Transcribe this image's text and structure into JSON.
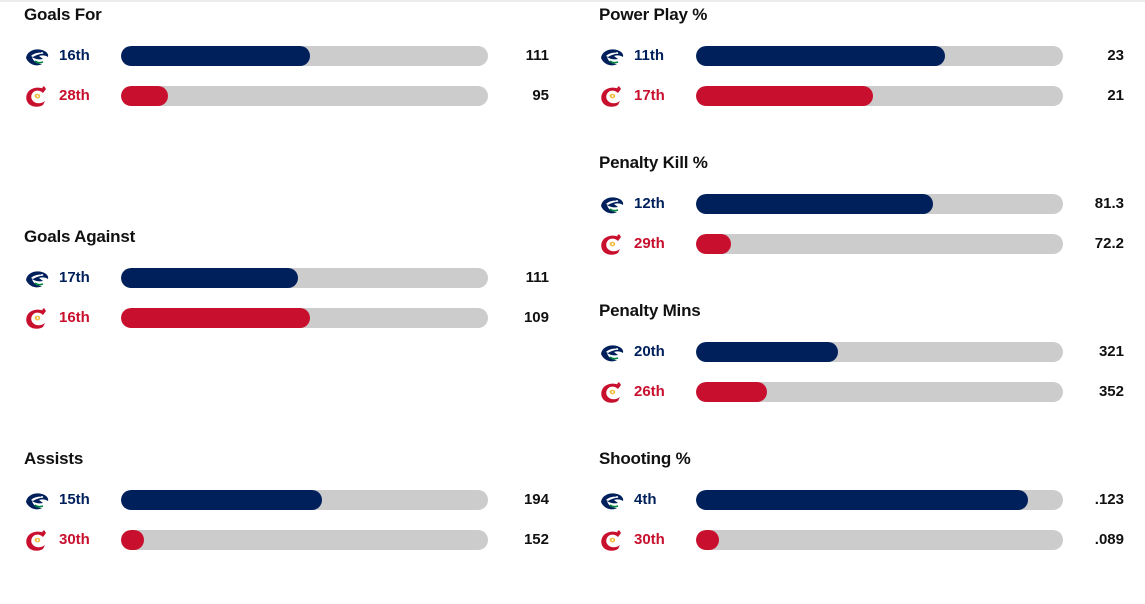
{
  "colors": {
    "canucks": "#00205B",
    "flames": "#C8102E",
    "track": "#CCCCCC"
  },
  "teams": {
    "home_logo": "canucks-orca-icon",
    "away_logo": "flames-flaming-c-icon"
  },
  "stats_left": [
    {
      "title": "Goals For",
      "rows": [
        {
          "team": "canucks",
          "rank": "16th",
          "value": "111",
          "fill": 0.515
        },
        {
          "team": "flames",
          "rank": "28th",
          "value": "95",
          "fill": 0.128
        }
      ]
    },
    {
      "title": "Goals Against",
      "rows": [
        {
          "team": "canucks",
          "rank": "17th",
          "value": "111",
          "fill": 0.482
        },
        {
          "team": "flames",
          "rank": "16th",
          "value": "109",
          "fill": 0.515
        }
      ]
    },
    {
      "title": "Assists",
      "rows": [
        {
          "team": "canucks",
          "rank": "15th",
          "value": "194",
          "fill": 0.548
        },
        {
          "team": "flames",
          "rank": "30th",
          "value": "152",
          "fill": 0.063
        }
      ]
    }
  ],
  "stats_right": [
    {
      "title": "Power Play %",
      "rows": [
        {
          "team": "canucks",
          "rank": "11th",
          "value": "23",
          "fill": 0.678
        },
        {
          "team": "flames",
          "rank": "17th",
          "value": "21",
          "fill": 0.482
        }
      ]
    },
    {
      "title": "Penalty Kill %",
      "rows": [
        {
          "team": "canucks",
          "rank": "12th",
          "value": "81.3",
          "fill": 0.646
        },
        {
          "team": "flames",
          "rank": "29th",
          "value": "72.2",
          "fill": 0.095
        }
      ]
    },
    {
      "title": "Penalty Mins",
      "rows": [
        {
          "team": "canucks",
          "rank": "20th",
          "value": "321",
          "fill": 0.387
        },
        {
          "team": "flames",
          "rank": "26th",
          "value": "352",
          "fill": 0.193
        }
      ]
    },
    {
      "title": "Shooting %",
      "rows": [
        {
          "team": "canucks",
          "rank": "4th",
          "value": ".123",
          "fill": 0.905
        },
        {
          "team": "flames",
          "rank": "30th",
          "value": ".089",
          "fill": 0.063
        }
      ]
    }
  ]
}
